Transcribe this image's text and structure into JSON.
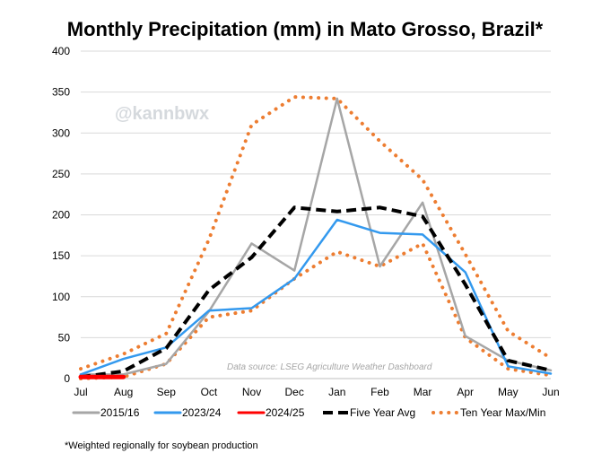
{
  "title": "Monthly Precipitation (mm) in Mato Grosso, Brazil*",
  "watermark": "@kannbwx",
  "source_note": "Data source: LSEG Agriculture Weather Dashboard",
  "footnote": "*Weighted regionally  for soybean production",
  "chart_data": {
    "type": "line",
    "title": "Monthly Precipitation (mm) in Mato Grosso, Brazil*",
    "xlabel": "",
    "ylabel": "",
    "categories": [
      "Jul",
      "Aug",
      "Sep",
      "Oct",
      "Nov",
      "Dec",
      "Jan",
      "Feb",
      "Mar",
      "Apr",
      "May",
      "Jun"
    ],
    "ylim": [
      0,
      400
    ],
    "yticks": [
      0,
      50,
      100,
      150,
      200,
      250,
      300,
      350,
      400
    ],
    "grid": true,
    "legend_position": "bottom",
    "series": [
      {
        "name": "2015/16",
        "color": "#a6a6a6",
        "style": "solid",
        "values": [
          5,
          5,
          18,
          82,
          165,
          132,
          342,
          137,
          215,
          52,
          22,
          10
        ]
      },
      {
        "name": "2023/24",
        "color": "#3399ee",
        "style": "solid",
        "values": [
          5,
          24,
          38,
          83,
          86,
          122,
          194,
          178,
          176,
          130,
          15,
          6
        ]
      },
      {
        "name": "2024/25",
        "color": "#ff0000",
        "style": "solid",
        "values": [
          2,
          2,
          null,
          null,
          null,
          null,
          null,
          null,
          null,
          null,
          null,
          null
        ]
      },
      {
        "name": "Five Year Avg",
        "color": "#000000",
        "style": "dashed",
        "values": [
          2,
          9,
          37,
          108,
          148,
          209,
          204,
          209,
          198,
          115,
          22,
          10
        ]
      },
      {
        "name": "Ten Year Max/Min",
        "color": "#ed7d31",
        "style": "dotted",
        "values": [
          12,
          30,
          55,
          170,
          310,
          344,
          342,
          290,
          243,
          152,
          58,
          25
        ]
      },
      {
        "name": "Ten Year Max/Min",
        "color": "#ed7d31",
        "style": "dotted",
        "legend": false,
        "values": [
          0,
          2,
          18,
          75,
          83,
          122,
          155,
          137,
          165,
          50,
          12,
          4
        ]
      }
    ]
  }
}
